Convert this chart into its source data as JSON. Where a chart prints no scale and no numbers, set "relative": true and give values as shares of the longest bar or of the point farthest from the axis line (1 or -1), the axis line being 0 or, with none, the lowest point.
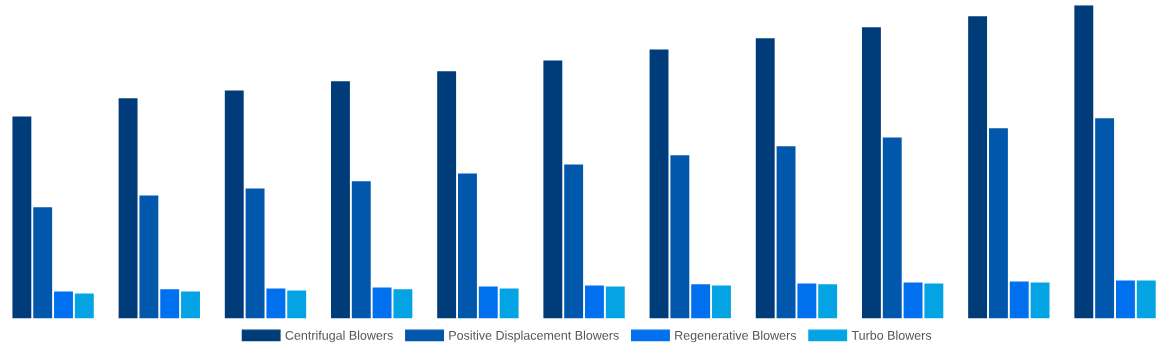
{
  "chart_data": {
    "type": "bar",
    "relative": true,
    "categories": [
      null,
      null,
      null,
      null,
      null,
      null,
      null,
      null,
      null,
      null,
      null
    ],
    "legend": "bottom",
    "grid": false,
    "series": [
      {
        "name": "Centrifugal Blowers",
        "color": "#003b7a",
        "values": [
          0.645,
          0.703,
          0.728,
          0.757,
          0.789,
          0.824,
          0.859,
          0.895,
          0.93,
          0.965,
          1
        ]
      },
      {
        "name": "Positive Displacement Blowers",
        "color": "#0157ab",
        "values": [
          0.355,
          0.393,
          0.415,
          0.438,
          0.463,
          0.492,
          0.521,
          0.55,
          0.578,
          0.607,
          0.639
        ]
      },
      {
        "name": "Regenerative Blowers",
        "color": "#0070ef",
        "values": [
          0.086,
          0.093,
          0.096,
          0.099,
          0.102,
          0.105,
          0.109,
          0.112,
          0.115,
          0.118,
          0.121
        ]
      },
      {
        "name": "Turbo Blowers",
        "color": "#04a3e3",
        "values": [
          0.08,
          0.086,
          0.089,
          0.093,
          0.096,
          0.102,
          0.105,
          0.109,
          0.112,
          0.115,
          0.121
        ]
      }
    ]
  }
}
